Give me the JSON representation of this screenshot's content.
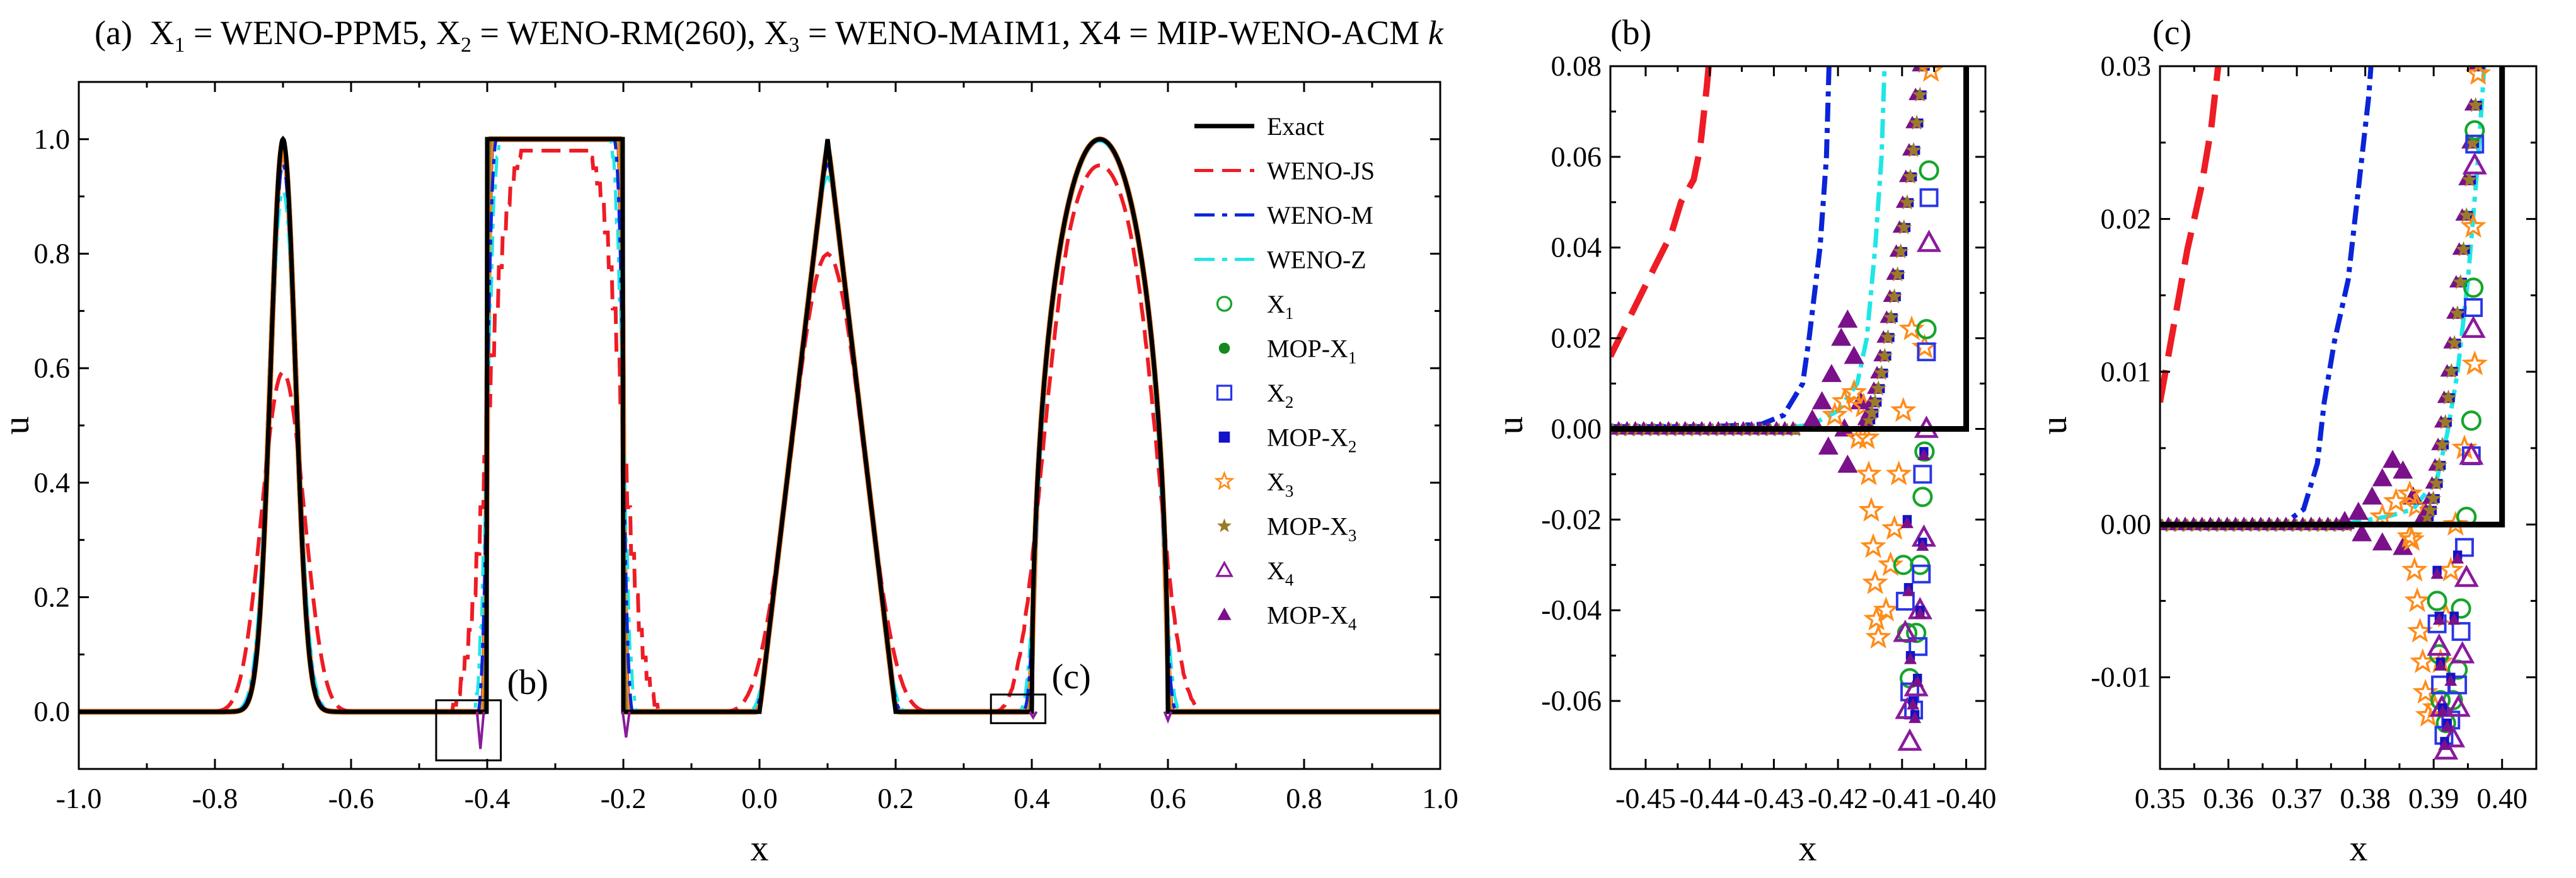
{
  "chart_data": [
    {
      "id": "a",
      "type": "line",
      "panel_label": "(a)",
      "title_parts": {
        "x1": "X",
        "x1_sub": "1",
        "x1_val": " = WENO-PPM5, ",
        "x2": "X",
        "x2_sub": "2",
        "x2_val": " = WENO-RM(260), ",
        "x3": "X",
        "x3_sub": "3",
        "x3_val": " = WENO-MAIM1, ",
        "x4": "X4 = MIP-WENO-ACM ",
        "k": "k"
      },
      "xlabel": "x",
      "ylabel": "u",
      "xlim": [
        -1.0,
        1.0
      ],
      "ylim": [
        -0.1,
        1.1
      ],
      "xticks": [
        "-1.0",
        "-0.8",
        "-0.6",
        "-0.4",
        "-0.2",
        "0.0",
        "0.2",
        "0.4",
        "0.6",
        "0.8",
        "1.0"
      ],
      "yticks": [
        "0.0",
        "0.2",
        "0.4",
        "0.6",
        "0.8",
        "1.0"
      ],
      "annotations": [
        {
          "text": "(b)",
          "box_x": [
            -0.475,
            -0.38
          ],
          "box_y": [
            -0.085,
            0.02
          ]
        },
        {
          "text": "(c)",
          "box_x": [
            0.34,
            0.42
          ],
          "box_y": [
            -0.02,
            0.03
          ]
        }
      ],
      "legend": [
        {
          "label": "Exact",
          "sub": "",
          "style": "line",
          "color": "#000000"
        },
        {
          "label": "WENO-JS",
          "sub": "",
          "style": "dash",
          "color": "#ee1c24"
        },
        {
          "label": "WENO-M",
          "sub": "",
          "style": "dashdot",
          "color": "#0a24d8"
        },
        {
          "label": "WENO-Z",
          "sub": "",
          "style": "dashdot",
          "color": "#20e6e6"
        },
        {
          "label": "X",
          "sub": "1",
          "style": "open-circle",
          "color": "#15a52a"
        },
        {
          "label": "MOP-X",
          "sub": "1",
          "style": "filled-circle",
          "color": "#15891f"
        },
        {
          "label": "X",
          "sub": "2",
          "style": "open-square",
          "color": "#2a35e6"
        },
        {
          "label": "MOP-X",
          "sub": "2",
          "style": "filled-square",
          "color": "#1212c8"
        },
        {
          "label": "X",
          "sub": "3",
          "style": "open-star",
          "color": "#ff8c1a"
        },
        {
          "label": "MOP-X",
          "sub": "3",
          "style": "filled-star",
          "color": "#9c7a2a"
        },
        {
          "label": "X",
          "sub": "4",
          "style": "open-triangle",
          "color": "#8a1a9c"
        },
        {
          "label": "MOP-X",
          "sub": "4",
          "style": "filled-triangle",
          "color": "#7a118a"
        }
      ]
    },
    {
      "id": "b",
      "type": "line",
      "panel_label": "(b)",
      "xlabel": "x",
      "ylabel": "u",
      "xlim": [
        -0.4555,
        -0.397
      ],
      "ylim": [
        -0.075,
        0.08
      ],
      "xticks": [
        -0.45,
        -0.44,
        -0.43,
        -0.42,
        -0.41,
        -0.4
      ],
      "xtick_labels": [
        "-0.45",
        "-0.44",
        "-0.43",
        "-0.42",
        "-0.41",
        "-0.40"
      ],
      "yticks": [
        -0.06,
        -0.04,
        -0.02,
        0.0,
        0.02,
        0.04,
        0.06,
        0.08
      ],
      "ytick_labels": [
        "-0.06",
        "-0.04",
        "-0.02",
        "0.00",
        "0.02",
        "0.04",
        "0.06",
        "0.08"
      ]
    },
    {
      "id": "c",
      "type": "line",
      "panel_label": "(c)",
      "xlabel": "x",
      "ylabel": "u",
      "xlim": [
        0.35,
        0.405
      ],
      "ylim": [
        -0.016,
        0.03
      ],
      "xticks": [
        0.35,
        0.36,
        0.37,
        0.38,
        0.39,
        0.4
      ],
      "xtick_labels": [
        "0.35",
        "0.36",
        "0.37",
        "0.38",
        "0.39",
        "0.40"
      ],
      "yticks": [
        -0.01,
        0.0,
        0.01,
        0.02,
        0.03
      ],
      "ytick_labels": [
        "-0.01",
        "0.00",
        "0.01",
        "0.02",
        "0.03"
      ]
    }
  ]
}
